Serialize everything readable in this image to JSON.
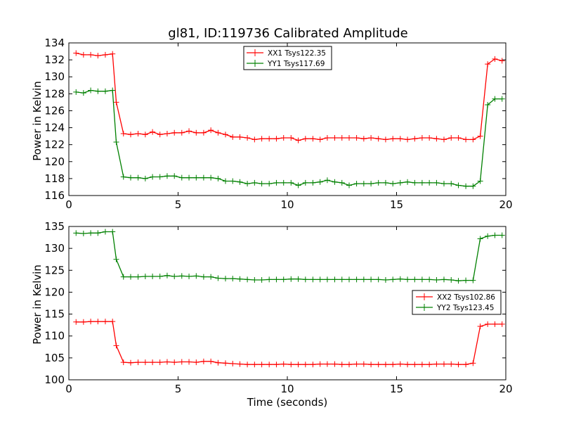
{
  "chart_data": [
    {
      "type": "line",
      "title": "gl81, ID:119736 Calibrated Amplitude",
      "xlabel": "",
      "ylabel": "Power in Kelvin",
      "xlim": [
        0,
        20
      ],
      "ylim": [
        116,
        134
      ],
      "xticks": [
        0,
        5,
        10,
        15,
        20
      ],
      "yticks": [
        116,
        118,
        120,
        122,
        124,
        126,
        128,
        130,
        132,
        134
      ],
      "legend_position": "top-center",
      "grid": false,
      "x": [
        0.33,
        0.67,
        1.0,
        1.33,
        1.67,
        2.0,
        2.17,
        2.5,
        2.83,
        3.17,
        3.5,
        3.83,
        4.17,
        4.5,
        4.83,
        5.17,
        5.5,
        5.83,
        6.17,
        6.5,
        6.83,
        7.17,
        7.5,
        7.83,
        8.17,
        8.5,
        8.83,
        9.17,
        9.5,
        9.83,
        10.17,
        10.5,
        10.83,
        11.17,
        11.5,
        11.83,
        12.17,
        12.5,
        12.83,
        13.17,
        13.5,
        13.83,
        14.17,
        14.5,
        14.83,
        15.17,
        15.5,
        15.83,
        16.17,
        16.5,
        16.83,
        17.17,
        17.5,
        17.83,
        18.17,
        18.5,
        18.83,
        19.17,
        19.5,
        19.83
      ],
      "series": [
        {
          "name": "XX1 Tsys122.35",
          "color": "#ff0000",
          "values": [
            132.8,
            132.6,
            132.6,
            132.5,
            132.6,
            132.7,
            127.0,
            123.3,
            123.2,
            123.3,
            123.2,
            123.5,
            123.2,
            123.3,
            123.4,
            123.4,
            123.6,
            123.4,
            123.4,
            123.7,
            123.4,
            123.2,
            122.9,
            122.9,
            122.8,
            122.6,
            122.7,
            122.7,
            122.7,
            122.8,
            122.8,
            122.5,
            122.7,
            122.7,
            122.6,
            122.8,
            122.8,
            122.8,
            122.8,
            122.8,
            122.7,
            122.8,
            122.7,
            122.6,
            122.7,
            122.7,
            122.6,
            122.7,
            122.8,
            122.8,
            122.7,
            122.6,
            122.8,
            122.8,
            122.6,
            122.6,
            123.0,
            131.5,
            132.1,
            131.9
          ]
        },
        {
          "name": "YY1 Tsys117.69",
          "color": "#008000",
          "values": [
            128.2,
            128.1,
            128.4,
            128.3,
            128.3,
            128.4,
            122.3,
            118.2,
            118.1,
            118.1,
            118.0,
            118.2,
            118.2,
            118.3,
            118.3,
            118.1,
            118.1,
            118.1,
            118.1,
            118.1,
            118.0,
            117.7,
            117.7,
            117.6,
            117.4,
            117.5,
            117.4,
            117.4,
            117.5,
            117.5,
            117.5,
            117.2,
            117.5,
            117.5,
            117.6,
            117.8,
            117.6,
            117.5,
            117.2,
            117.4,
            117.4,
            117.4,
            117.5,
            117.5,
            117.4,
            117.5,
            117.6,
            117.5,
            117.5,
            117.5,
            117.5,
            117.4,
            117.4,
            117.2,
            117.1,
            117.1,
            117.7,
            126.7,
            127.4,
            127.4
          ]
        }
      ]
    },
    {
      "type": "line",
      "title": "",
      "xlabel": "Time (seconds)",
      "ylabel": "Power in Kelvin",
      "xlim": [
        0,
        20
      ],
      "ylim": [
        100,
        135
      ],
      "xticks": [
        0,
        5,
        10,
        15,
        20
      ],
      "yticks": [
        100,
        105,
        110,
        115,
        120,
        125,
        130,
        135
      ],
      "legend_position": "center-right",
      "grid": false,
      "x": [
        0.33,
        0.67,
        1.0,
        1.33,
        1.67,
        2.0,
        2.17,
        2.5,
        2.83,
        3.17,
        3.5,
        3.83,
        4.17,
        4.5,
        4.83,
        5.17,
        5.5,
        5.83,
        6.17,
        6.5,
        6.83,
        7.17,
        7.5,
        7.83,
        8.17,
        8.5,
        8.83,
        9.17,
        9.5,
        9.83,
        10.17,
        10.5,
        10.83,
        11.17,
        11.5,
        11.83,
        12.17,
        12.5,
        12.83,
        13.17,
        13.5,
        13.83,
        14.17,
        14.5,
        14.83,
        15.17,
        15.5,
        15.83,
        16.17,
        16.5,
        16.83,
        17.17,
        17.5,
        17.83,
        18.17,
        18.5,
        18.83,
        19.17,
        19.5,
        19.83
      ],
      "series": [
        {
          "name": "XX2 Tsys102.86",
          "color": "#ff0000",
          "values": [
            113.2,
            113.2,
            113.3,
            113.3,
            113.3,
            113.3,
            107.8,
            104.0,
            103.9,
            104.0,
            104.0,
            104.0,
            104.0,
            104.1,
            104.0,
            104.1,
            104.1,
            104.0,
            104.2,
            104.2,
            103.9,
            103.8,
            103.7,
            103.6,
            103.5,
            103.5,
            103.5,
            103.5,
            103.5,
            103.6,
            103.5,
            103.5,
            103.5,
            103.5,
            103.6,
            103.6,
            103.6,
            103.5,
            103.5,
            103.6,
            103.6,
            103.5,
            103.5,
            103.5,
            103.5,
            103.6,
            103.5,
            103.5,
            103.5,
            103.5,
            103.6,
            103.6,
            103.6,
            103.5,
            103.5,
            103.8,
            112.2,
            112.7,
            112.7,
            112.7
          ]
        },
        {
          "name": "YY2 Tsys123.45",
          "color": "#008000",
          "values": [
            133.5,
            133.4,
            133.5,
            133.5,
            133.8,
            133.8,
            127.5,
            123.5,
            123.5,
            123.5,
            123.6,
            123.6,
            123.6,
            123.8,
            123.6,
            123.7,
            123.6,
            123.7,
            123.5,
            123.5,
            123.2,
            123.1,
            123.1,
            123.0,
            122.9,
            122.8,
            122.8,
            122.9,
            122.9,
            122.9,
            123.0,
            123.0,
            122.9,
            122.9,
            122.9,
            122.9,
            122.9,
            122.9,
            122.9,
            122.9,
            122.9,
            122.9,
            122.9,
            122.8,
            122.9,
            123.0,
            122.9,
            122.9,
            122.9,
            122.9,
            122.8,
            122.9,
            122.8,
            122.6,
            122.7,
            122.7,
            132.2,
            132.8,
            133.0,
            133.0
          ]
        }
      ]
    }
  ]
}
